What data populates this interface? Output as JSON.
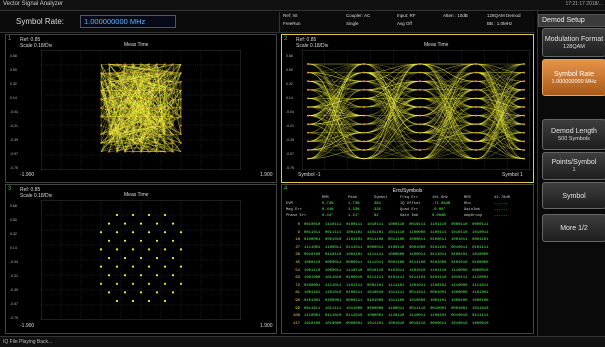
{
  "app": {
    "title": "Vector Signal Analyzer",
    "clock": "17:21:17  2018/..."
  },
  "symbol_rate": {
    "label": "Symbol Rate:",
    "value": "1.000000000 MHz"
  },
  "meas_info": {
    "ref": "Ref: Int",
    "freerun": "FreeRun",
    "coupler": "Coupler: AC",
    "single": "Single",
    "input": "Input: RF",
    "avg": "Avg  Off",
    "atten": "Atten : 10dB",
    "demod": "128QAM Demod",
    "bw": "BB : 1.0MHz"
  },
  "menu": {
    "title": "Demod Setup",
    "buttons": [
      {
        "main": "Modulation Format",
        "sub": "128QAM",
        "active": false
      },
      {
        "main": "Symbol Rate",
        "sub": "1.000000000 MHz",
        "active": true
      },
      {
        "main": "Demod Length",
        "sub": "500 Symbols",
        "active": false
      },
      {
        "main": "Points/Symbol",
        "sub": "1",
        "active": false
      },
      {
        "main": "Symbol",
        "sub": "",
        "active": false
      },
      {
        "main": "More 1/2",
        "sub": "",
        "active": false
      }
    ]
  },
  "panels": {
    "p1": {
      "num": "1",
      "ref": "Ref: 0.85",
      "scale": "Scale 0.18/Div",
      "title": "Meas Time",
      "xmin": "-1.900",
      "xmax": "1.900",
      "yticks": [
        "0.68",
        "0.50",
        "0.32",
        "0.14",
        "-0.04",
        "-0.21",
        "-0.39",
        "-0.57",
        "-0.75"
      ]
    },
    "p2": {
      "num": "2",
      "ref": "Ref: 0.85",
      "scale": "Scale 0.18/Div",
      "title": "Meas Time",
      "xmin": "Symbol -1",
      "xmax": "Symbol 1",
      "yticks": [
        "0.68",
        "0.50",
        "0.32",
        "0.14",
        "-0.04",
        "-0.21",
        "-0.39",
        "-0.57",
        "-0.75"
      ]
    },
    "p3": {
      "num": "3",
      "ref": "Ref: 0.85",
      "scale": "Scale 0.18/Div",
      "title": "Meas Time",
      "xmin": "-1.900",
      "xmax": "1.900",
      "yticks": [
        "0.68",
        "0.50",
        "0.32",
        "0.14",
        "-0.04",
        "-0.21",
        "-0.39",
        "-0.57",
        "-0.75"
      ]
    },
    "p4": {
      "num": "4",
      "title": "Errs/Symbols"
    }
  },
  "err_table": {
    "headers": [
      "",
      "RMS",
      "Peak",
      "Symbol",
      "Freq Err",
      "101.6Hz",
      "MER",
      "42.78dB"
    ],
    "rows": [
      [
        "EVM",
        "0.73%",
        "1.73%",
        "384",
        "IQ Offset",
        "-71.88dB",
        "Rho",
        "------"
      ],
      [
        "Mag Err",
        "0.44%",
        "1.33%",
        "326",
        "Quad Err",
        "-0.00°",
        "GainImb",
        "------"
      ],
      [
        "Phase Err",
        "0.44°",
        "1.21°",
        "82",
        "Gain Imb",
        "0.00dB",
        "AmpDroop",
        "------"
      ]
    ]
  },
  "symbols": [
    {
      "idx": "0",
      "bits": "0010010  1110111  0100111  1010111  1000110  0010111  1101110  0000110  0000111"
    },
    {
      "idx": "9",
      "bits": "0011011  0011111  1001101  1101101  1011110  1100000  1100111  1010110  1010011"
    },
    {
      "idx": "18",
      "bits": "0100001  0001010  1101101  0011100  0011100  1000011  0100011  1001011  0001101"
    },
    {
      "idx": "27",
      "bits": "1111001  1100011  0111011  0000011  0100110  0001000  0101101  0010011  0101111"
    },
    {
      "idx": "36",
      "bits": "0010100  0110110  1001101  1111111  1000000  1100011  0111011  0100101  1010000"
    },
    {
      "idx": "45",
      "bits": "1000110  0000011  0000011  1111011  0001100  0111100  0101000  0101010  0100000"
    },
    {
      "idx": "54",
      "bits": "1001110  1000011  1110110  0010110  0101011  1101010  1101110  1110000  0000010"
    },
    {
      "idx": "63",
      "bits": "1001000  1011010  0100010  0111111  0101111  0111101  0101110  1010111  1110001"
    },
    {
      "idx": "72",
      "bits": "0100001  1111011  1101111  0001101  1111101  1101011  1100101  1110000  1111011"
    },
    {
      "idx": "81",
      "bits": "1001101  1101010  0100111  1010010  1011111  0011011  0001001  1000000  1101001"
    },
    {
      "idx": "90",
      "bits": "0101001  0100001  0000111  0101000  1011100  1010000  1001101  1000100  1000100"
    },
    {
      "idx": "99",
      "bits": "0011011  1011111  1011000  0000000  1100011  0011110  0010001  0001001  1011010"
    },
    {
      "idx": "108",
      "bits": "1110001  0111010  0111010  1000001  1110110  1110011  1100101  0010010  0111111"
    },
    {
      "idx": "117",
      "bits": "1010100  1010000  0000001  1011101  1001010  0010110  0000011  1010010  1000010"
    }
  ],
  "status": "IQ File Playing Back...",
  "colors": {
    "trace": "#f0f040",
    "sel_border": "#e8c84a",
    "text_green": "#5aff5a",
    "active_key": "#e6944a"
  }
}
